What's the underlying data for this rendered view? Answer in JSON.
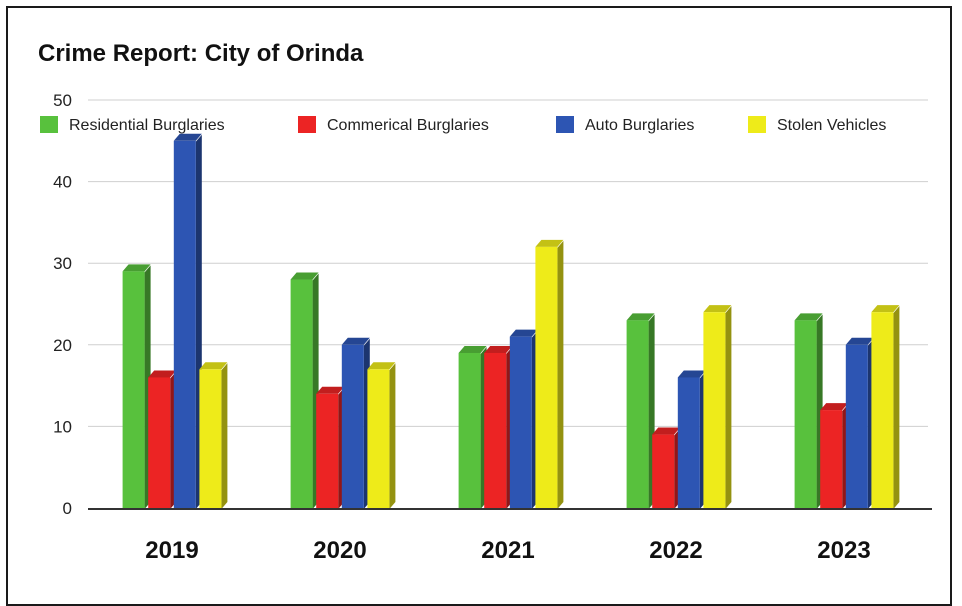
{
  "chart_data": {
    "type": "bar",
    "title": "Crime Report: City of Orinda",
    "xlabel": "",
    "ylabel": "",
    "categories": [
      "2019",
      "2020",
      "2021",
      "2022",
      "2023"
    ],
    "series": [
      {
        "name": "Residential Burglaries",
        "color": "#58c13d",
        "values": [
          29,
          28,
          19,
          23,
          23
        ]
      },
      {
        "name": "Commerical Burglaries",
        "color": "#ec2424",
        "values": [
          16,
          14,
          19,
          9,
          12
        ]
      },
      {
        "name": "Auto Burglaries",
        "color": "#2d55b3",
        "values": [
          45,
          20,
          21,
          16,
          20
        ]
      },
      {
        "name": "Stolen Vehicles",
        "color": "#eeeb19",
        "values": [
          17,
          17,
          32,
          24,
          24
        ]
      }
    ],
    "ylim": [
      0,
      50
    ],
    "yticks": [
      0,
      10,
      20,
      30,
      40,
      50
    ],
    "grid": true,
    "legend_position": "top",
    "bar_style": "3d"
  }
}
